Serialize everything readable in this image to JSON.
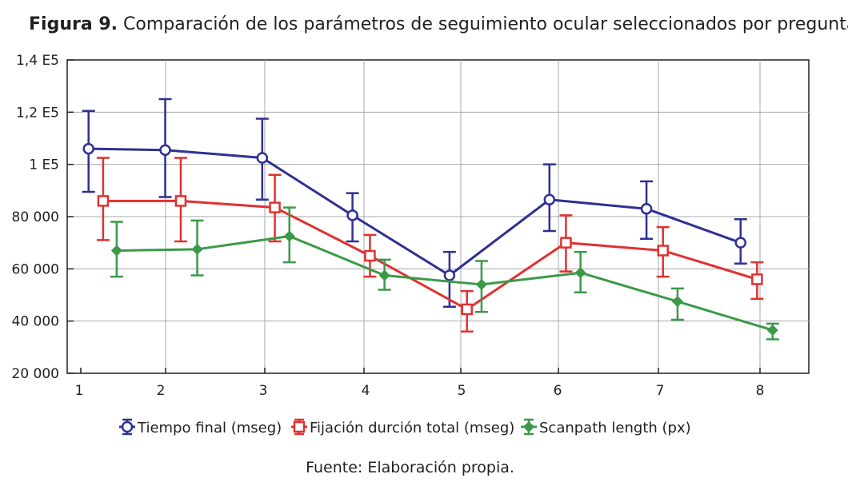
{
  "figure": {
    "label": "Figura 9.",
    "title": "Comparación de los parámetros de seguimiento ocular seleccionados por pregunta",
    "source": "Fuente: Elaboración propia."
  },
  "chart_data": {
    "type": "line",
    "title": "Comparación de los parámetros de seguimiento ocular seleccionados por pregunta",
    "xlabel": "",
    "ylabel": "",
    "categories": [
      "1",
      "2",
      "3",
      "4",
      "5",
      "6",
      "7",
      "8"
    ],
    "ylim": [
      20000,
      140000
    ],
    "yticks": [
      20000,
      40000,
      60000,
      80000,
      100000,
      120000,
      140000
    ],
    "ytick_labels": [
      "20 000",
      "40 000",
      "60 000",
      "80 000",
      "1 E5",
      "1,2 E5",
      "1,4 E5"
    ],
    "grid": true,
    "legend_position": "bottom",
    "series": [
      {
        "name": "Tiempo final  (mseg)",
        "color": "#2e3192",
        "marker": "circle",
        "x": [
          1.08,
          1.87,
          2.87,
          3.8,
          4.8,
          5.83,
          6.83,
          7.8
        ],
        "values": [
          106000,
          105500,
          102500,
          80500,
          57500,
          86500,
          83000,
          70000
        ],
        "err_low": [
          89500,
          87500,
          86500,
          70500,
          45500,
          74500,
          71500,
          62000
        ],
        "err_high": [
          120500,
          125000,
          117500,
          89000,
          66500,
          100000,
          93500,
          79000
        ]
      },
      {
        "name": "Fijación durción total (mseg)",
        "color": "#e03131",
        "marker": "square",
        "x": [
          1.23,
          2.03,
          3.0,
          3.98,
          4.98,
          6.0,
          7.0,
          7.97
        ],
        "values": [
          86000,
          86000,
          83500,
          65000,
          44500,
          70000,
          67000,
          56000
        ],
        "err_low": [
          71000,
          70500,
          70500,
          57000,
          36000,
          59000,
          57000,
          48500
        ],
        "err_high": [
          102500,
          102500,
          96000,
          73000,
          51500,
          80500,
          76000,
          62500
        ]
      },
      {
        "name": "Scanpath length (px)",
        "color": "#3a9a48",
        "marker": "diamond",
        "x": [
          1.37,
          2.2,
          3.15,
          4.13,
          5.13,
          6.15,
          7.15,
          8.13
        ],
        "values": [
          67000,
          67500,
          72500,
          57500,
          54000,
          58500,
          47500,
          36500
        ],
        "err_low": [
          57000,
          57500,
          62500,
          52000,
          43500,
          51000,
          40500,
          33000
        ],
        "err_high": [
          78000,
          78500,
          83500,
          63500,
          63000,
          66500,
          52500,
          39000
        ]
      }
    ]
  }
}
